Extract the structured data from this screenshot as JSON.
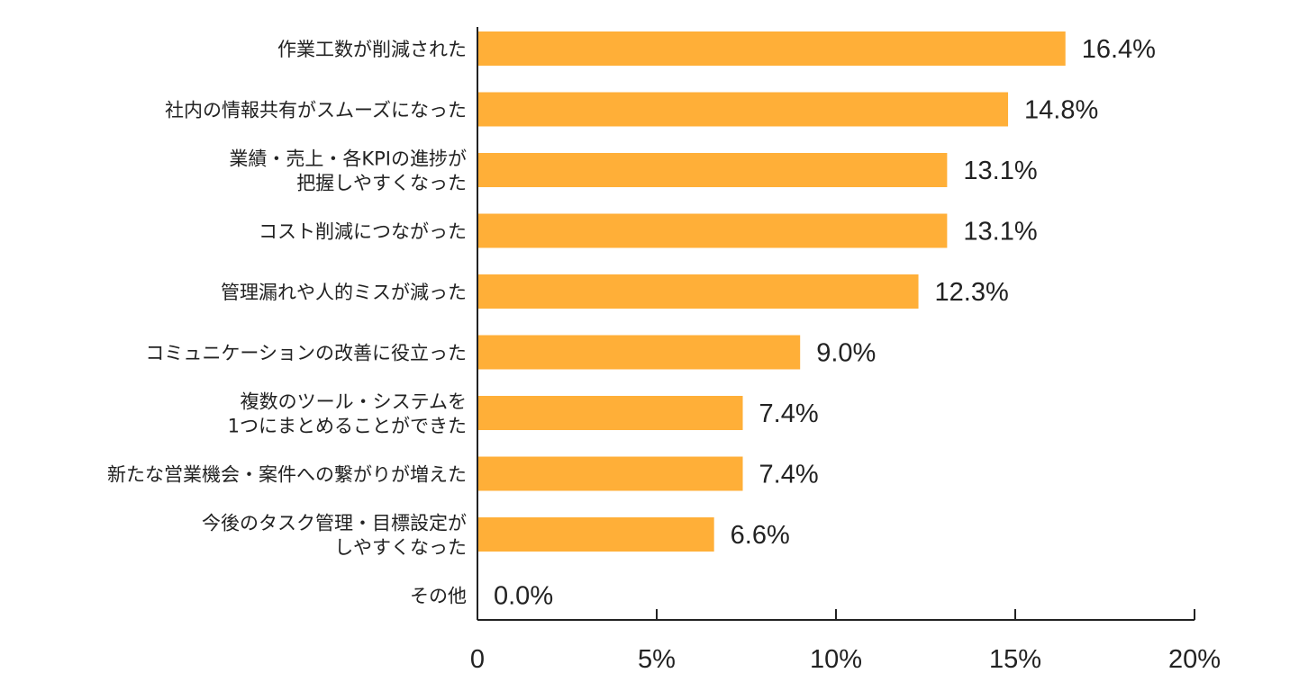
{
  "chart_data": {
    "type": "bar",
    "orientation": "horizontal",
    "categories": [
      [
        "作業工数が削減された"
      ],
      [
        "社内の情報共有がスムーズになった"
      ],
      [
        "業績・売上・各KPIの進捗が",
        "把握しやすくなった"
      ],
      [
        "コスト削減につながった"
      ],
      [
        "管理漏れや人的ミスが減った"
      ],
      [
        "コミュニケーションの改善に役立った"
      ],
      [
        "複数のツール・システムを",
        "1つにまとめることができた"
      ],
      [
        "新たな営業機会・案件への繋がりが増えた"
      ],
      [
        "今後のタスク管理・目標設定が",
        "しやすくなった"
      ],
      [
        "その他"
      ]
    ],
    "values": [
      16.4,
      14.8,
      13.1,
      13.1,
      12.3,
      9.0,
      7.4,
      7.4,
      6.6,
      0.0
    ],
    "value_labels": [
      "16.4%",
      "14.8%",
      "13.1%",
      "13.1%",
      "12.3%",
      "9.0%",
      "7.4%",
      "7.4%",
      "6.6%",
      "0.0%"
    ],
    "xlim": [
      0,
      20
    ],
    "ticks": [
      0,
      5,
      10,
      15,
      20
    ],
    "tick_labels": [
      "0",
      "5%",
      "10%",
      "15%",
      "20%"
    ],
    "bar_color": "#FFAF38",
    "axis_color": "#222222",
    "grid": false,
    "legend": "none"
  }
}
